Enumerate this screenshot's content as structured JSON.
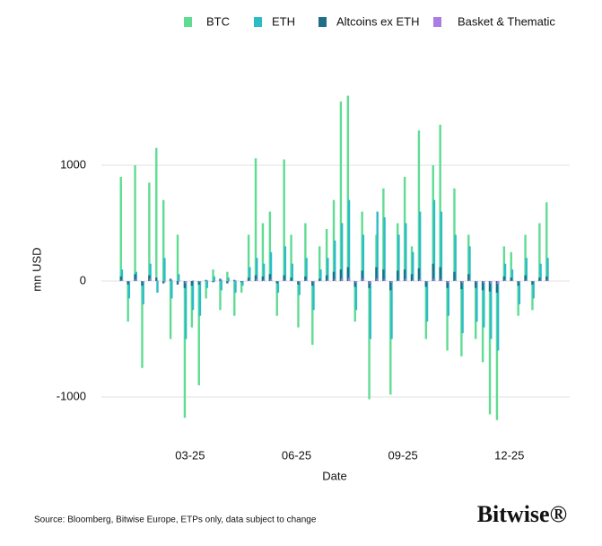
{
  "chart_data": {
    "type": "bar",
    "y_label": "mn USD",
    "x_label": "Date",
    "source": "Source: Bloomberg, Bitwise Europe, ETPs only, data subject to change",
    "logo": "Bitwise®",
    "x": [
      0.05,
      0.25,
      0.45,
      0.65,
      0.85,
      1.05,
      1.25,
      1.45,
      1.65,
      1.85,
      2.05,
      2.25,
      2.45,
      2.65,
      2.85,
      3.05,
      3.25,
      3.45,
      3.65,
      3.85,
      4.05,
      4.25,
      4.45,
      4.65,
      4.85,
      5.05,
      5.25,
      5.45,
      5.65,
      5.85,
      6.05,
      6.25,
      6.45,
      6.65,
      6.85,
      7.05,
      7.25,
      7.45,
      7.65,
      7.85,
      8.05,
      8.25,
      8.45,
      8.65,
      8.85,
      9.05,
      9.25,
      9.45,
      9.65,
      9.85,
      10.05,
      10.25,
      10.45,
      10.65,
      10.85,
      11.05,
      11.25,
      11.45,
      11.65,
      11.85,
      12.05
    ],
    "series": [
      {
        "name": "BTC",
        "color": "#5fdc92",
        "values": [
          900,
          -350,
          1000,
          -750,
          850,
          1150,
          700,
          -500,
          400,
          -1180,
          -400,
          -900,
          -150,
          100,
          -250,
          80,
          -300,
          -100,
          400,
          1060,
          500,
          600,
          -300,
          1050,
          400,
          -400,
          500,
          -550,
          300,
          450,
          700,
          1550,
          1600,
          -350,
          600,
          -1020,
          400,
          800,
          -980,
          500,
          900,
          300,
          1300,
          -500,
          1000,
          1350,
          -600,
          800,
          -650,
          400,
          -500,
          -700,
          -1150,
          -1200,
          300,
          250,
          -300,
          400,
          -250,
          500,
          680
        ]
      },
      {
        "name": "ETH",
        "color": "#2bbcc8",
        "values": [
          100,
          -150,
          80,
          -200,
          150,
          -100,
          200,
          -150,
          60,
          -500,
          -250,
          -300,
          -60,
          40,
          -80,
          30,
          -100,
          -40,
          120,
          200,
          150,
          250,
          -100,
          300,
          150,
          -120,
          200,
          -250,
          100,
          200,
          350,
          500,
          700,
          -250,
          400,
          -500,
          600,
          550,
          -500,
          400,
          500,
          250,
          600,
          -350,
          700,
          600,
          -300,
          400,
          -450,
          300,
          -350,
          -400,
          -500,
          -600,
          150,
          100,
          -200,
          200,
          -150,
          150,
          200
        ]
      },
      {
        "name": "Altcoins ex ETH",
        "color": "#1f6f86",
        "values": [
          40,
          -30,
          60,
          -40,
          50,
          30,
          -20,
          20,
          -30,
          -60,
          -40,
          -30,
          10,
          -10,
          20,
          -20,
          10,
          -10,
          30,
          50,
          40,
          60,
          -20,
          50,
          30,
          -30,
          40,
          -40,
          20,
          50,
          80,
          100,
          120,
          -50,
          90,
          -60,
          120,
          100,
          -80,
          90,
          100,
          60,
          110,
          -50,
          150,
          120,
          -60,
          80,
          -70,
          60,
          -60,
          -80,
          -90,
          -100,
          40,
          30,
          -40,
          50,
          -30,
          30,
          40
        ]
      },
      {
        "name": "Basket & Thematic",
        "color": "#a97de3",
        "values": [
          10,
          -5,
          15,
          -10,
          20,
          5,
          -10,
          10,
          -5,
          -20,
          5,
          -10,
          5,
          -5,
          10,
          -5,
          5,
          -5,
          10,
          15,
          10,
          15,
          -5,
          10,
          5,
          -10,
          10,
          -10,
          5,
          10,
          15,
          20,
          25,
          -15,
          20,
          -20,
          25,
          15,
          -15,
          10,
          20,
          10,
          15,
          -10,
          20,
          15,
          -15,
          10,
          -15,
          10,
          -10,
          -15,
          -20,
          -25,
          10,
          5,
          -10,
          10,
          -5,
          5,
          10
        ]
      }
    ],
    "xlim": [
      -0.5,
      12.7
    ],
    "xticks": [
      {
        "value": 2,
        "label": "03-25"
      },
      {
        "value": 5,
        "label": "06-25"
      },
      {
        "value": 8,
        "label": "09-25"
      },
      {
        "value": 11,
        "label": "12-25"
      }
    ],
    "ylim": [
      -1250,
      1950
    ],
    "yticks": [
      -1000,
      0,
      1000
    ],
    "grid": true,
    "legend": "top-right"
  }
}
